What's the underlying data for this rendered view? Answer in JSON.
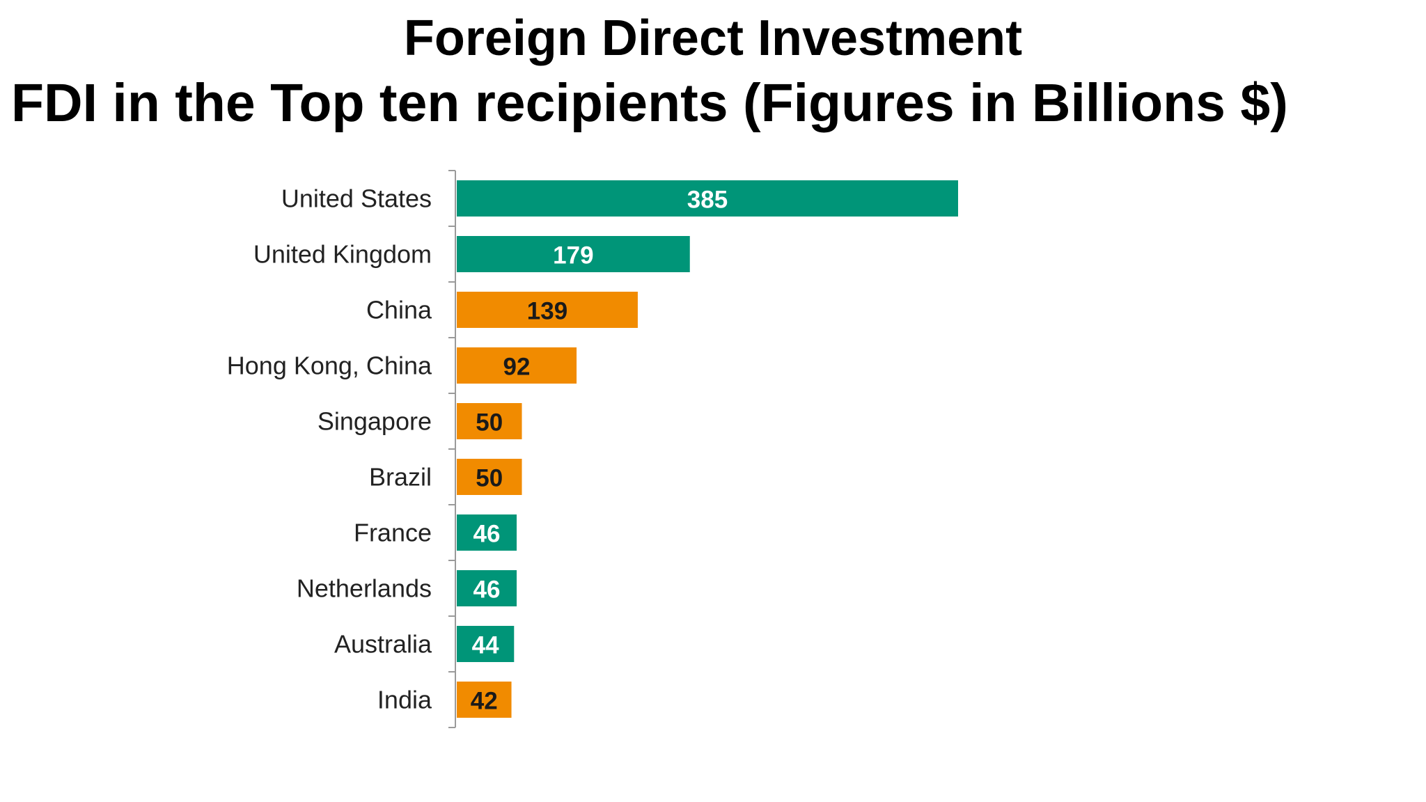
{
  "title": "Foreign Direct Investment",
  "subtitle": "FDI in the Top ten recipients (Figures in Billions $)",
  "colors": {
    "green": "#009578",
    "orange": "#F18B00",
    "axis": "#9a9a9a"
  },
  "chart_data": {
    "type": "bar",
    "orientation": "horizontal",
    "categories": [
      "United States",
      "United Kingdom",
      "China",
      "Hong Kong, China",
      "Singapore",
      "Brazil",
      "France",
      "Netherlands",
      "Australia",
      "India"
    ],
    "values": [
      385,
      179,
      139,
      92,
      50,
      50,
      46,
      46,
      44,
      42
    ],
    "bar_colors": [
      "green",
      "green",
      "orange",
      "orange",
      "orange",
      "orange",
      "green",
      "green",
      "green",
      "orange"
    ],
    "value_label_colors": [
      "#ffffff",
      "#ffffff",
      "#1a1a1a",
      "#1a1a1a",
      "#1a1a1a",
      "#1a1a1a",
      "#ffffff",
      "#ffffff",
      "#ffffff",
      "#1a1a1a"
    ],
    "xlim": [
      0,
      385
    ],
    "grid": false,
    "legend": "none"
  }
}
